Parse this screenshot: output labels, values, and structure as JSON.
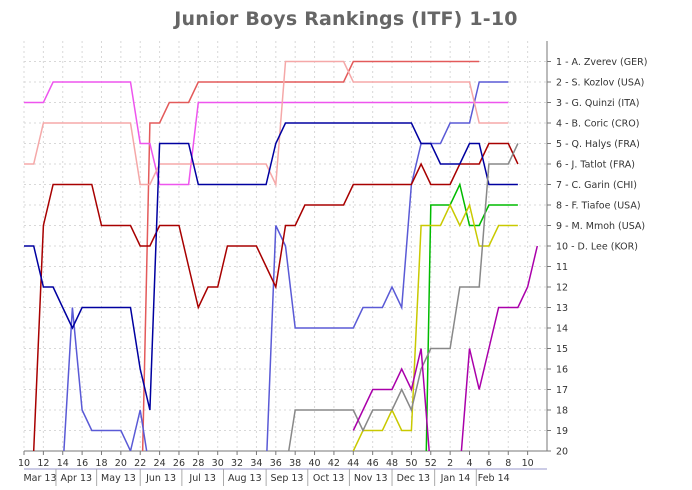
{
  "chart_data": {
    "type": "line",
    "title": "Junior Boys Rankings (ITF) 1-10",
    "xlabel": "",
    "ylabel": "",
    "ylim": [
      20,
      1
    ],
    "y_inverted": true,
    "grid": true,
    "week_ticks": [
      "10",
      "12",
      "14",
      "16",
      "18",
      "20",
      "22",
      "24",
      "26",
      "28",
      "30",
      "32",
      "34",
      "36",
      "38",
      "40",
      "42",
      "44",
      "46",
      "48",
      "50",
      "52",
      "2",
      "4",
      "6",
      "8",
      "10"
    ],
    "month_labels": [
      "Mar 13",
      "Apr 13",
      "May 13",
      "Jun 13",
      "Jul 13",
      "Aug 13",
      "Sep 13",
      "Oct 13",
      "Nov 13",
      "Dec 13",
      "Jan 14",
      "Feb 14"
    ],
    "y_ticks": [
      "10",
      "11",
      "12",
      "13",
      "14",
      "15",
      "16",
      "17",
      "18",
      "19",
      "20"
    ],
    "legend_position": "right",
    "series": [
      {
        "name": "1 - A. Zverev (GER)",
        "color": "#e35a5a",
        "points": [
          [
            22.2,
            21
          ],
          [
            23,
            4
          ],
          [
            24,
            4
          ],
          [
            25,
            3
          ],
          [
            27,
            3
          ],
          [
            28,
            2
          ],
          [
            43,
            2
          ],
          [
            44,
            1
          ],
          [
            57,
            1
          ]
        ]
      },
      {
        "name": "2 - S. Kozlov (USA)",
        "color": "#5a5ad6",
        "points": [
          [
            14,
            21
          ],
          [
            15,
            13
          ],
          [
            16,
            18
          ],
          [
            17,
            19
          ],
          [
            20,
            19
          ],
          [
            21,
            20
          ],
          [
            22,
            18
          ],
          [
            23,
            21
          ],
          [
            35,
            21
          ],
          [
            36,
            9
          ],
          [
            37,
            10
          ],
          [
            38,
            14
          ],
          [
            44,
            14
          ],
          [
            45,
            13
          ],
          [
            47,
            13
          ],
          [
            48,
            12
          ],
          [
            49,
            13
          ],
          [
            50,
            7
          ],
          [
            51,
            5
          ],
          [
            53,
            5
          ],
          [
            54,
            4
          ],
          [
            56,
            4
          ],
          [
            57,
            2
          ],
          [
            60,
            2
          ]
        ]
      },
      {
        "name": "3 - G. Quinzi (ITA)",
        "color": "#ee55ee",
        "points": [
          [
            10,
            3
          ],
          [
            12,
            3
          ],
          [
            13,
            2
          ],
          [
            21,
            2
          ],
          [
            22,
            5
          ],
          [
            23,
            5
          ],
          [
            24,
            7
          ],
          [
            27,
            7
          ],
          [
            28,
            3
          ],
          [
            60,
            3
          ]
        ]
      },
      {
        "name": "4 - B. Coric (CRO)",
        "color": "#f5a8a8",
        "points": [
          [
            10,
            6
          ],
          [
            11,
            6
          ],
          [
            12,
            4
          ],
          [
            21,
            4
          ],
          [
            22,
            7
          ],
          [
            23,
            7
          ],
          [
            24,
            6
          ],
          [
            35,
            6
          ],
          [
            36,
            7
          ],
          [
            37,
            1
          ],
          [
            43,
            1
          ],
          [
            44,
            2
          ],
          [
            56,
            2
          ],
          [
            57,
            4
          ],
          [
            60,
            4
          ]
        ]
      },
      {
        "name": "5 - Q. Halys (FRA)",
        "color": "#a80000",
        "points": [
          [
            11,
            20
          ],
          [
            12,
            9
          ],
          [
            13,
            7
          ],
          [
            17,
            7
          ],
          [
            18,
            9
          ],
          [
            21,
            9
          ],
          [
            22,
            10
          ],
          [
            23,
            10
          ],
          [
            24,
            9
          ],
          [
            26,
            9
          ],
          [
            27,
            11
          ],
          [
            28,
            13
          ],
          [
            29,
            12
          ],
          [
            30,
            12
          ],
          [
            31,
            10
          ],
          [
            34,
            10
          ],
          [
            35,
            11
          ],
          [
            36,
            12
          ],
          [
            37,
            9
          ],
          [
            38,
            9
          ],
          [
            39,
            8
          ],
          [
            43,
            8
          ],
          [
            44,
            7
          ],
          [
            50,
            7
          ],
          [
            51,
            6
          ],
          [
            52,
            7
          ],
          [
            54,
            7
          ],
          [
            55,
            6
          ],
          [
            57,
            6
          ],
          [
            58,
            5
          ],
          [
            60,
            5
          ],
          [
            61,
            6
          ]
        ]
      },
      {
        "name": "6 - J. Tatlot (FRA)",
        "color": "#0000a0",
        "points": [
          [
            10,
            10
          ],
          [
            11,
            10
          ],
          [
            12,
            12
          ],
          [
            13,
            12
          ],
          [
            14,
            13
          ],
          [
            15,
            14
          ],
          [
            16,
            13
          ],
          [
            21,
            13
          ],
          [
            22,
            16
          ],
          [
            23,
            18
          ],
          [
            24,
            5
          ],
          [
            27,
            5
          ],
          [
            28,
            7
          ],
          [
            35,
            7
          ],
          [
            36,
            5
          ],
          [
            37,
            4
          ],
          [
            50,
            4
          ],
          [
            51,
            5
          ],
          [
            52,
            5
          ],
          [
            53,
            6
          ],
          [
            55,
            6
          ],
          [
            56,
            5
          ],
          [
            57,
            5
          ],
          [
            58,
            7
          ],
          [
            61,
            7
          ]
        ]
      },
      {
        "name": "7 - C. Garin (CHI)",
        "color": "#00bb00",
        "points": [
          [
            51.5,
            21
          ],
          [
            52,
            8
          ],
          [
            54,
            8
          ],
          [
            55,
            7
          ],
          [
            56,
            9
          ],
          [
            57,
            9
          ],
          [
            58,
            8
          ],
          [
            61,
            8
          ]
        ]
      },
      {
        "name": "8 - F. Tiafoe (USA)",
        "color": "#c9c900",
        "points": [
          [
            44,
            20
          ],
          [
            45,
            19
          ],
          [
            47,
            19
          ],
          [
            48,
            18
          ],
          [
            49,
            19
          ],
          [
            50,
            19
          ],
          [
            51,
            9
          ],
          [
            53,
            9
          ],
          [
            54,
            8
          ],
          [
            55,
            9
          ],
          [
            56,
            8
          ],
          [
            57,
            10
          ],
          [
            58,
            10
          ],
          [
            59,
            9
          ],
          [
            61,
            9
          ]
        ]
      },
      {
        "name": "9 - M. Mmoh (USA)",
        "color": "#888888",
        "points": [
          [
            37,
            21
          ],
          [
            38,
            18
          ],
          [
            44,
            18
          ],
          [
            45,
            19
          ],
          [
            46,
            18
          ],
          [
            48,
            18
          ],
          [
            49,
            17
          ],
          [
            50,
            18
          ],
          [
            51,
            16
          ],
          [
            52,
            15
          ],
          [
            54,
            15
          ],
          [
            55,
            12
          ],
          [
            57,
            12
          ],
          [
            58,
            6
          ],
          [
            60,
            6
          ],
          [
            61,
            5
          ]
        ]
      },
      {
        "name": "10 - D. Lee (KOR)",
        "color": "#aa00aa",
        "points": [
          [
            44,
            19
          ],
          [
            45,
            18
          ],
          [
            46,
            17
          ],
          [
            48,
            17
          ],
          [
            49,
            16
          ],
          [
            50,
            17
          ],
          [
            51,
            15
          ],
          [
            52,
            21
          ],
          [
            55,
            21
          ],
          [
            56,
            15
          ],
          [
            57,
            17
          ],
          [
            58,
            15
          ],
          [
            59,
            13
          ],
          [
            61,
            13
          ],
          [
            62,
            12
          ],
          [
            63,
            10
          ]
        ]
      }
    ]
  }
}
